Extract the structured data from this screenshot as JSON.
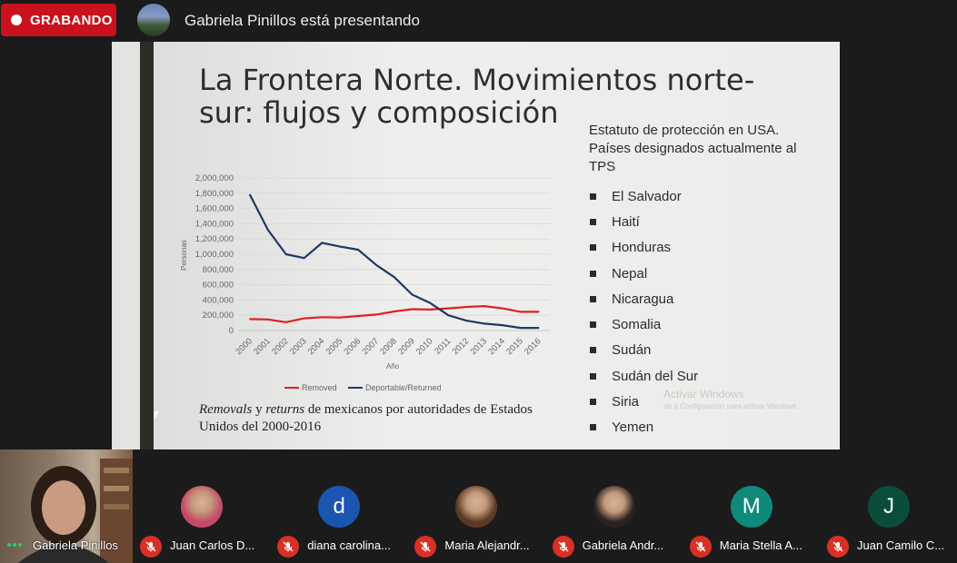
{
  "topbar": {
    "recording_label": "GRABANDO",
    "presenter_text": "Gabriela Pinillos está presentando"
  },
  "slide": {
    "title": "La Frontera Norte. Movimientos norte-sur: flujos y composición",
    "tps_heading": "Estatuto de protección en USA. Países designados actualmente al TPS",
    "tps_countries": [
      "El Salvador",
      "Haití",
      "Honduras",
      "Nepal",
      "Nicaragua",
      "Somalia",
      "Sudán",
      "Sudán del Sur",
      "Siria",
      "Yemen"
    ],
    "caption_html": "<i>Removals</i> y <i>returns</i> de mexicanos por autoridades de Estados Unidos del 2000-2016",
    "watermark_line1": "Activar Windows",
    "watermark_line2": "Ve a Configuración para activar Windows."
  },
  "chart_data": {
    "type": "line",
    "x": [
      "2000",
      "2001",
      "2002",
      "2003",
      "2004",
      "2005",
      "2006",
      "2007",
      "2008",
      "2009",
      "2010",
      "2011",
      "2012",
      "2013",
      "2014",
      "2015",
      "2016"
    ],
    "series": [
      {
        "name": "Removed",
        "color": "#e02020",
        "values": [
          150000,
          145000,
          110000,
          160000,
          175000,
          170000,
          190000,
          210000,
          250000,
          280000,
          275000,
          290000,
          310000,
          320000,
          290000,
          245000,
          245000
        ]
      },
      {
        "name": "Deportable/Returned",
        "color": "#1f3868",
        "values": [
          1780000,
          1320000,
          1000000,
          950000,
          1150000,
          1100000,
          1060000,
          860000,
          700000,
          470000,
          360000,
          200000,
          130000,
          90000,
          70000,
          35000,
          35000
        ]
      }
    ],
    "ylabel": "Personas",
    "xlabel": "Año",
    "ylim": [
      0,
      2000000
    ],
    "y_ticks": [
      "0",
      "200,000",
      "400,000",
      "600,000",
      "800,000",
      "1,000,000",
      "1,200,000",
      "1,400,000",
      "1,600,000",
      "1,800,000",
      "2,000,000"
    ],
    "grid": true,
    "legend_position": "bottom"
  },
  "participants": {
    "self": {
      "name": "Gabriela Pinillos"
    },
    "others": [
      {
        "name": "Juan Carlos D...",
        "avatar_type": "photo",
        "color": "#c44a6a"
      },
      {
        "name": "diana carolina...",
        "avatar_type": "letter",
        "letter": "d",
        "color": "#1a56b0"
      },
      {
        "name": "Maria Alejandr...",
        "avatar_type": "photo",
        "color": "#5a3a26"
      },
      {
        "name": "Gabriela Andr...",
        "avatar_type": "photo",
        "color": "#2a2222"
      },
      {
        "name": "Maria Stella A...",
        "avatar_type": "letter",
        "letter": "M",
        "color": "#0f8a7a"
      },
      {
        "name": "Juan Camilo C...",
        "avatar_type": "letter",
        "letter": "J",
        "color": "#0b4d3b"
      }
    ]
  }
}
